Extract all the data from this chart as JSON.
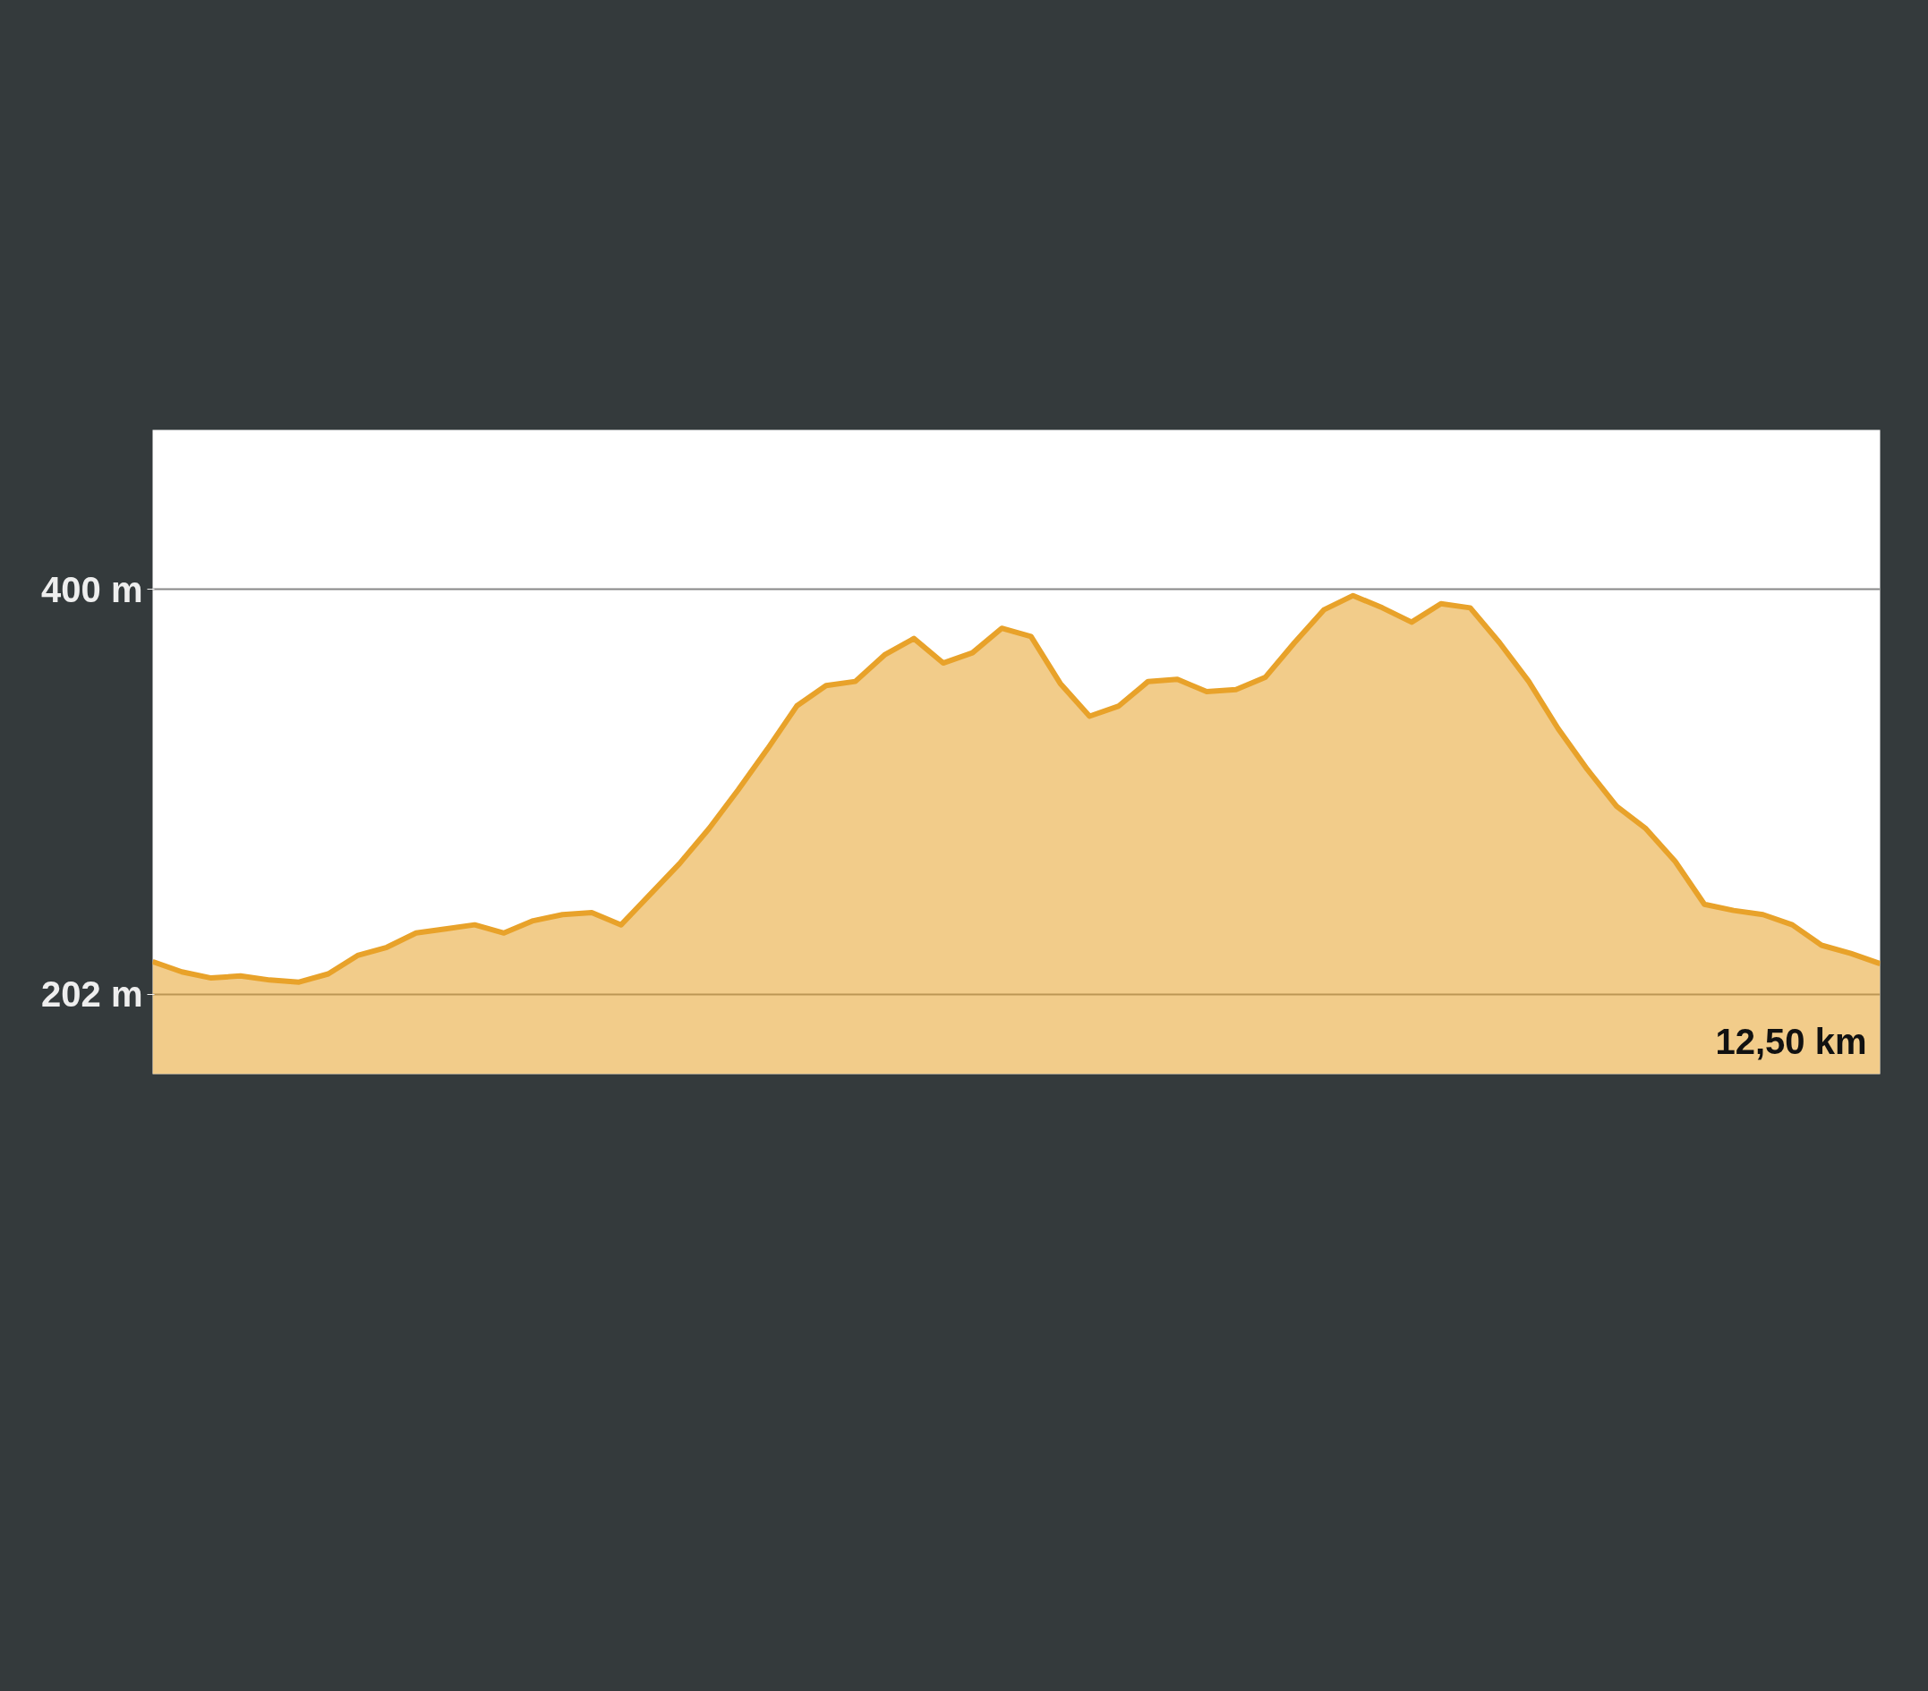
{
  "chart_data": {
    "type": "area",
    "categories": [
      null,
      null,
      null,
      null,
      null,
      null,
      null,
      null,
      null,
      null,
      null,
      null,
      null,
      null,
      null,
      null,
      null,
      null,
      null,
      null,
      null,
      null,
      null,
      null,
      null,
      null,
      null,
      null,
      null,
      null,
      null,
      null,
      null,
      null,
      null,
      null,
      null,
      null,
      null,
      null,
      null,
      null,
      null,
      null,
      null,
      null,
      null,
      null,
      null,
      null,
      null,
      null,
      null,
      null,
      null,
      null,
      null,
      null,
      null,
      null
    ],
    "series": [
      {
        "color": "#e8a22a",
        "values": [
          218,
          213,
          210,
          211,
          209,
          208,
          212,
          221,
          225,
          232,
          234,
          236,
          232,
          238,
          241,
          242,
          236,
          251,
          266,
          283,
          302,
          322,
          343,
          353,
          355,
          368,
          376,
          364,
          369,
          381,
          377,
          354,
          338,
          343,
          355,
          356,
          350,
          351,
          357,
          374,
          390,
          397,
          391,
          384,
          393,
          391,
          374,
          355,
          332,
          312,
          294,
          283,
          267,
          246,
          243,
          241,
          236,
          226,
          222,
          217
        ]
      }
    ],
    "ylim": [
      163,
      478
    ],
    "yticks": [
      {
        "value": 202,
        "label": "202 m"
      },
      {
        "value": 400,
        "label": "400 m"
      }
    ],
    "annotations": [
      "12,50 km"
    ],
    "grid": "y",
    "marker": "none",
    "line_style": "solid"
  }
}
